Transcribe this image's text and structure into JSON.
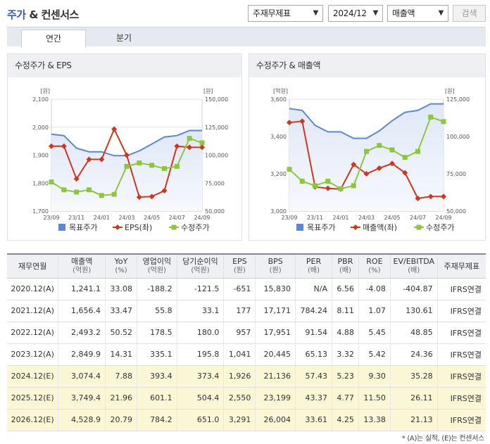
{
  "header": {
    "title_accent": "주가",
    "title_rest": " & 컨센서스",
    "select_subject": "주재무제표",
    "select_period": "2024/12",
    "select_metric": "매출액",
    "search_label": "검색"
  },
  "tabs": [
    {
      "label": "연간",
      "active": true
    },
    {
      "label": "분기",
      "active": false
    }
  ],
  "chart_data": [
    {
      "type": "line",
      "title": "수정주가 & EPS",
      "left_unit": "[원]",
      "right_unit": "[원]",
      "left_ticks": [
        "2,100",
        "2,000",
        "1,900",
        "1,800",
        "1,700"
      ],
      "left_range": [
        1700,
        2100
      ],
      "right_ticks": [
        "150,000",
        "125,000",
        "100,000",
        "75,000",
        "50,000"
      ],
      "right_range": [
        50000,
        150000
      ],
      "x_ticks": [
        "23/09",
        "23/11",
        "24/01",
        "24/03",
        "24/05",
        "24/07",
        "24/09"
      ],
      "series": [
        {
          "name": "목표주가",
          "axis": "left",
          "style": "area",
          "color": "#5b87d6",
          "values": [
            1975,
            1970,
            1925,
            1912,
            1912,
            1898,
            1898,
            1915,
            1940,
            1965,
            1970,
            1988,
            1988
          ]
        },
        {
          "name": "EPS(좌)",
          "axis": "left",
          "style": "diamond",
          "color": "#d0361e",
          "values": [
            1932,
            1932,
            1815,
            1885,
            1885,
            1993,
            1900,
            1750,
            1752,
            1773,
            1932,
            1928,
            1928
          ]
        },
        {
          "name": "수정주가",
          "axis": "right",
          "style": "square",
          "color": "#8cc63f",
          "values": [
            76000,
            69000,
            67000,
            69000,
            64000,
            65000,
            90000,
            93000,
            91000,
            88000,
            90000,
            115000,
            111000
          ]
        }
      ]
    },
    {
      "type": "line",
      "title": "수정주가 & 매출액",
      "left_unit": "[억원]",
      "right_unit": "[원]",
      "left_ticks": [
        "3,600",
        "3,400",
        "3,200",
        "3,000"
      ],
      "left_range": [
        3000,
        3600
      ],
      "right_ticks": [
        "125,000",
        "100,000",
        "75,000",
        "50,000"
      ],
      "right_range": [
        50000,
        125000
      ],
      "x_ticks": [
        "23/09",
        "23/11",
        "24/01",
        "24/03",
        "24/05",
        "24/07",
        "24/09"
      ],
      "series": [
        {
          "name": "목표주가",
          "axis": "left",
          "style": "area",
          "color": "#5b87d6",
          "values": [
            3550,
            3540,
            3460,
            3425,
            3425,
            3390,
            3390,
            3430,
            3485,
            3530,
            3540,
            3575,
            3575
          ]
        },
        {
          "name": "매출액(좌)",
          "axis": "left",
          "style": "diamond",
          "color": "#d0361e",
          "values": [
            3475,
            3482,
            3130,
            3122,
            3118,
            3250,
            3200,
            3230,
            3255,
            3205,
            3068,
            3078,
            3078
          ]
        },
        {
          "name": "수정주가",
          "axis": "right",
          "style": "square",
          "color": "#8cc63f",
          "values": [
            78000,
            70000,
            67000,
            70000,
            65000,
            67000,
            90000,
            94000,
            91000,
            86000,
            90000,
            113000,
            110000
          ]
        }
      ]
    }
  ],
  "table": {
    "headers": [
      {
        "main": "재무연월",
        "sub": ""
      },
      {
        "main": "매출액",
        "sub": "(억원)"
      },
      {
        "main": "YoY",
        "sub": "(%)"
      },
      {
        "main": "영업이익",
        "sub": "(억원)"
      },
      {
        "main": "당기순이익",
        "sub": "(억원)"
      },
      {
        "main": "EPS",
        "sub": "(원)"
      },
      {
        "main": "BPS",
        "sub": "(원)"
      },
      {
        "main": "PER",
        "sub": "(배)"
      },
      {
        "main": "PBR",
        "sub": "(배)"
      },
      {
        "main": "ROE",
        "sub": "(%)"
      },
      {
        "main": "EV/EBITDA",
        "sub": "(배)"
      },
      {
        "main": "주재무제표",
        "sub": ""
      }
    ],
    "rows": [
      {
        "estimate": false,
        "cells": [
          "2020.12(A)",
          "1,241.1",
          "33.08",
          "-188.2",
          "-121.5",
          "-651",
          "15,830",
          "N/A",
          "6.56",
          "-4.08",
          "-404.87",
          "IFRS연결"
        ]
      },
      {
        "estimate": false,
        "cells": [
          "2021.12(A)",
          "1,656.4",
          "33.47",
          "55.8",
          "33.1",
          "177",
          "17,171",
          "784.24",
          "8.11",
          "1.07",
          "130.61",
          "IFRS연결"
        ]
      },
      {
        "estimate": false,
        "cells": [
          "2022.12(A)",
          "2,493.2",
          "50.52",
          "178.5",
          "180.0",
          "957",
          "17,951",
          "91.54",
          "4.88",
          "5.45",
          "48.85",
          "IFRS연결"
        ]
      },
      {
        "estimate": false,
        "cells": [
          "2023.12(A)",
          "2,849.9",
          "14.31",
          "335.1",
          "195.8",
          "1,041",
          "20,445",
          "65.13",
          "3.32",
          "5.42",
          "24.36",
          "IFRS연결"
        ]
      },
      {
        "estimate": true,
        "cells": [
          "2024.12(E)",
          "3,074.4",
          "7.88",
          "393.4",
          "373.4",
          "1,926",
          "21,136",
          "57.43",
          "5.23",
          "9.30",
          "35.28",
          "IFRS연결"
        ]
      },
      {
        "estimate": true,
        "cells": [
          "2025.12(E)",
          "3,749.4",
          "21.96",
          "601.1",
          "504.4",
          "2,550",
          "23,199",
          "43.37",
          "4.77",
          "11.50",
          "26.11",
          "IFRS연결"
        ]
      },
      {
        "estimate": true,
        "cells": [
          "2026.12(E)",
          "4,528.9",
          "20.79",
          "784.2",
          "651.0",
          "3,291",
          "26,004",
          "33.61",
          "4.25",
          "13.38",
          "21.13",
          "IFRS연결"
        ]
      }
    ]
  },
  "footnote": "* (A)는 실적, (E)는 컨센서스",
  "colors": {
    "accent": "#2f5fb3",
    "estimate_row": "#fbf6d6",
    "header_bg": "#eef0f3"
  },
  "icons": {
    "dropdown": "chevron-down-icon"
  }
}
